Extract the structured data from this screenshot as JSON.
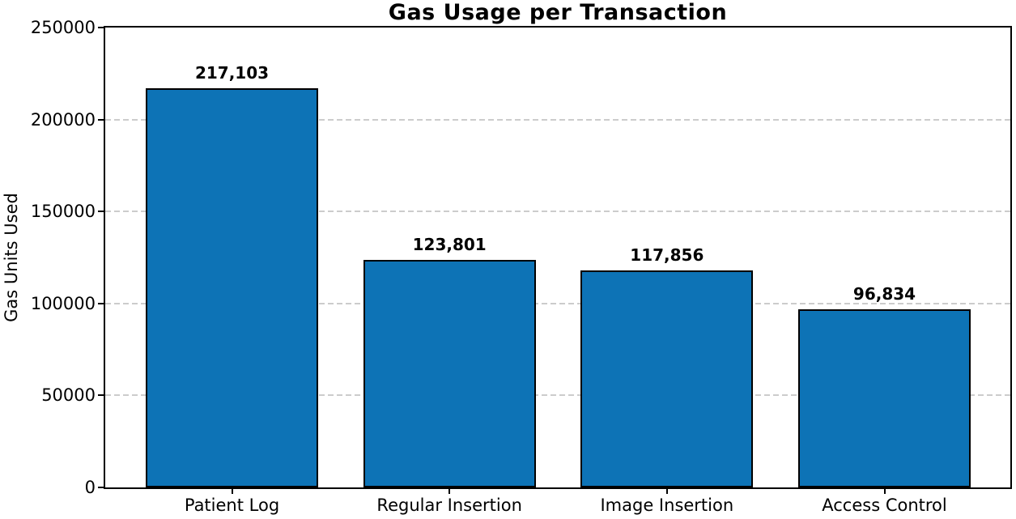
{
  "chart_data": {
    "type": "bar",
    "title": "Gas Usage per Transaction",
    "xlabel": "",
    "ylabel": "Gas Units Used",
    "categories": [
      "Patient Log",
      "Regular Insertion",
      "Image Insertion",
      "Access Control"
    ],
    "values": [
      217103,
      123801,
      117856,
      96834
    ],
    "value_labels": [
      "217,103",
      "123,801",
      "117,856",
      "96,834"
    ],
    "ylim": [
      0,
      250000
    ],
    "yticks": [
      0,
      50000,
      100000,
      150000,
      200000,
      250000
    ],
    "ytick_labels": [
      "0",
      "50000",
      "100000",
      "150000",
      "200000",
      "250000"
    ],
    "grid": "horizontal-dashed",
    "legend": "none",
    "bar_color": "#0d73b6",
    "bar_edge_color": "#000000",
    "grid_color": "#cccccc"
  }
}
